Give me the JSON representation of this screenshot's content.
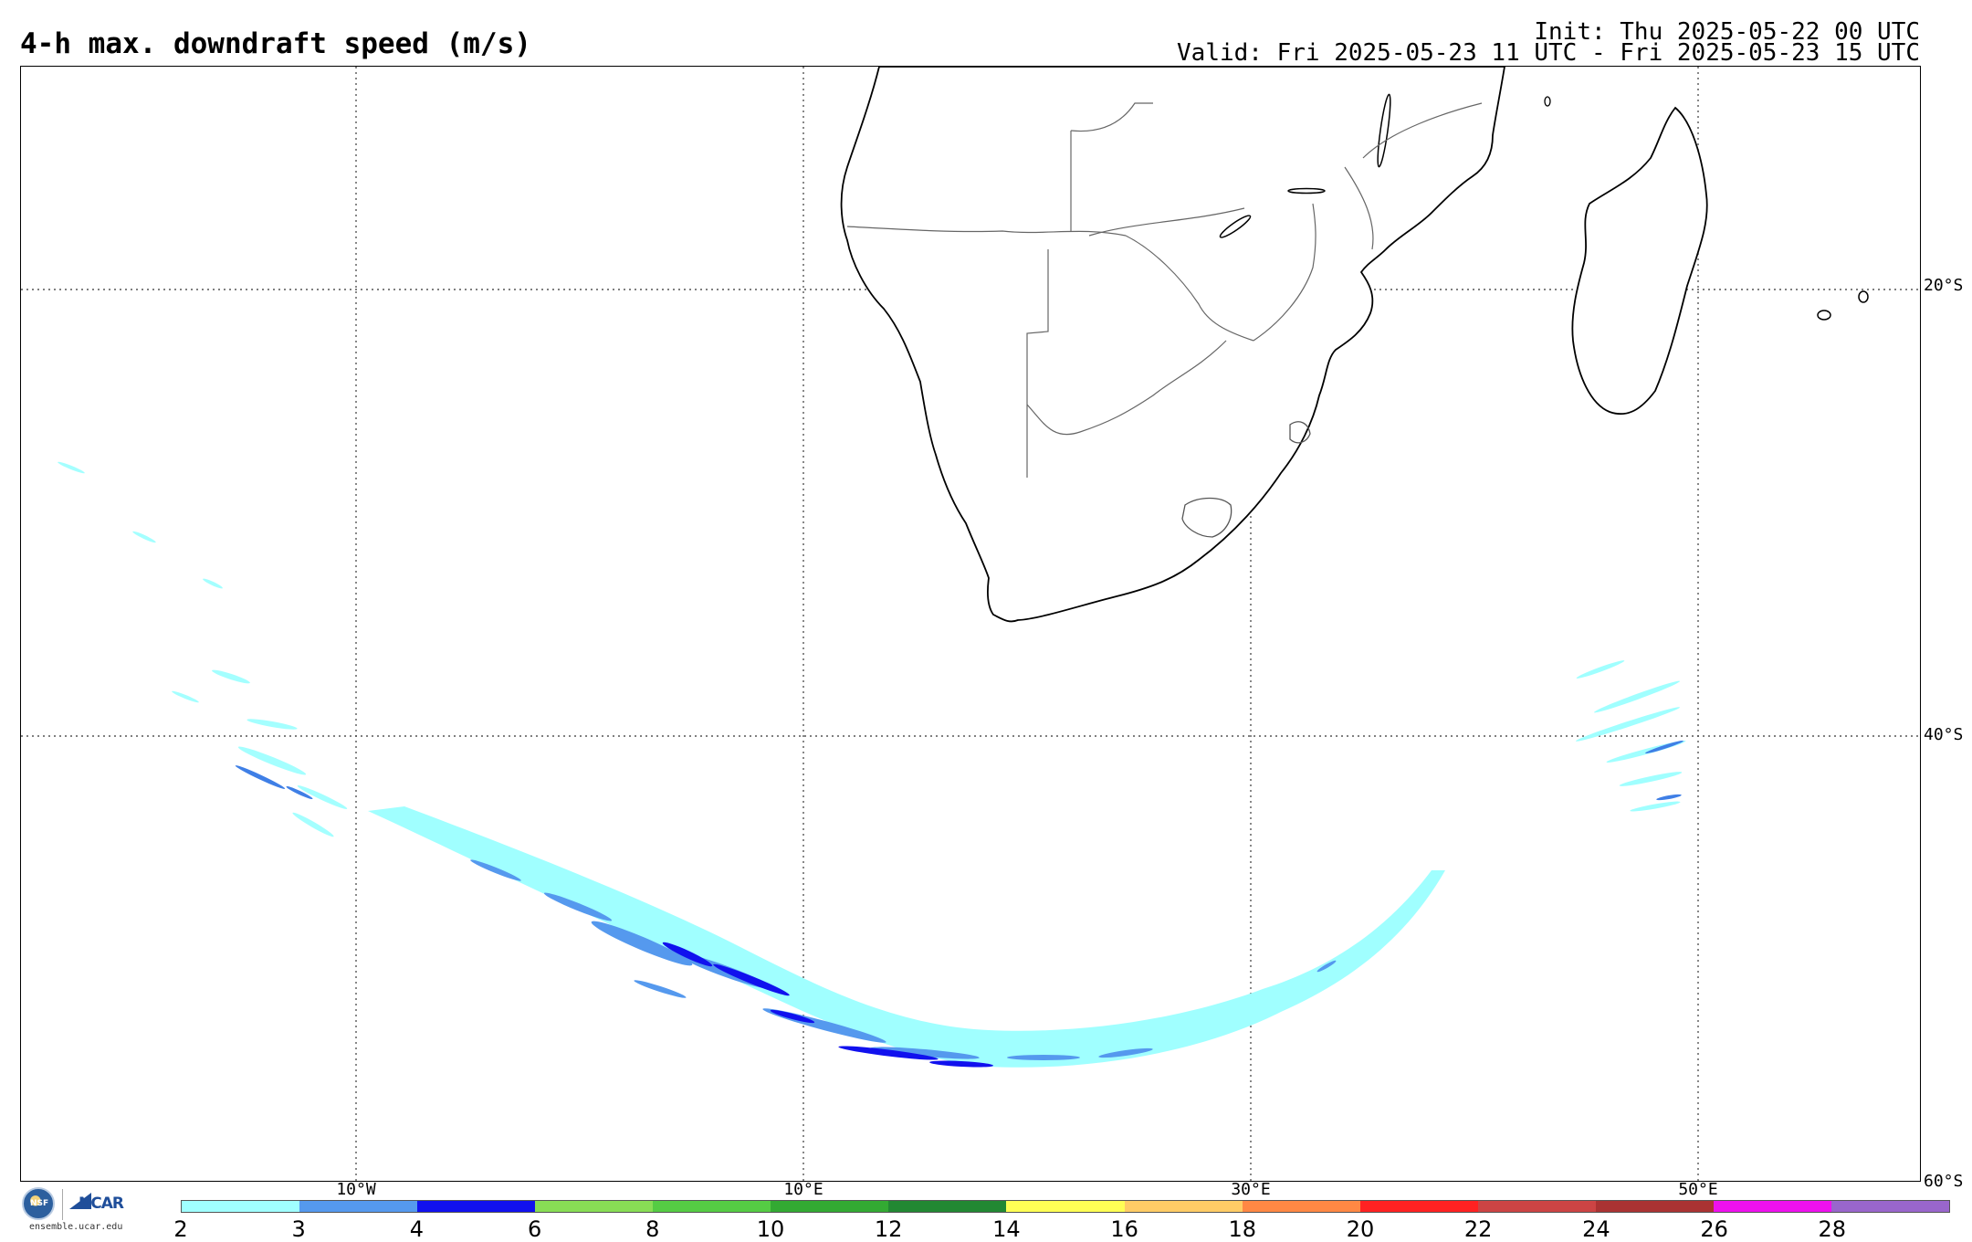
{
  "title": "4-h max. downdraft speed (m/s)",
  "init": "Init: Thu 2025-05-22 00 UTC",
  "valid": "Valid: Fri 2025-05-23 11 UTC - Fri 2025-05-23 15 UTC",
  "map": {
    "lat_labels": [
      "20°S",
      "40°S",
      "60°S"
    ],
    "lon_labels": [
      "10°W",
      "10°E",
      "30°E",
      "50°E"
    ],
    "grid": "dotted",
    "land_fill": "#ffffff",
    "coast_color": "#000000",
    "border_color": "#666666"
  },
  "colorbar": {
    "colors": [
      "#a0ffff",
      "#5599ee",
      "#1111ee",
      "#88dd55",
      "#55cc44",
      "#33aa33",
      "#228833",
      "#ffff55",
      "#ffcc66",
      "#ff8844",
      "#ff2222",
      "#cc4444",
      "#aa3333",
      "#ee11ee",
      "#9966cc"
    ],
    "labels": [
      "2",
      "3",
      "4",
      "6",
      "8",
      "10",
      "12",
      "14",
      "16",
      "18",
      "20",
      "22",
      "24",
      "26",
      "28"
    ]
  },
  "logos": {
    "nsf": "NSF",
    "ncar": "NCAR",
    "site": "ensemble.ucar.edu"
  }
}
